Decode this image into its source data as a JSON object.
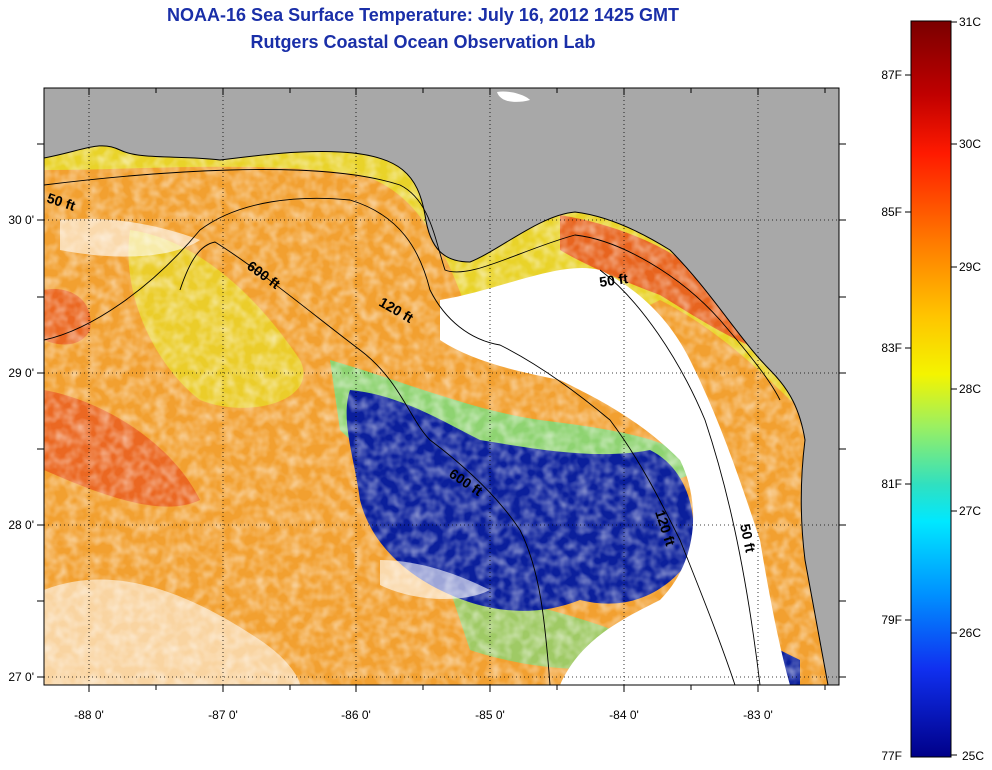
{
  "header": {
    "title": "NOAA-16 Sea Surface Temperature:  July 16, 2012 1425 GMT",
    "subtitle": "Rutgers Coastal Ocean Observation Lab"
  },
  "map": {
    "lon_ticks": [
      "-88 0'",
      "-87 0'",
      "-86 0'",
      "-85 0'",
      "-84 0'",
      "-83 0'"
    ],
    "lat_ticks": [
      "30 0'",
      "29 0'",
      "28 0'",
      "27 0'"
    ],
    "contours": [
      {
        "label": "50 ft"
      },
      {
        "label": "600 ft"
      },
      {
        "label": "120 ft"
      },
      {
        "label": "50 ft"
      },
      {
        "label": "600 ft"
      },
      {
        "label": "120 ft"
      },
      {
        "label": "50 ft"
      }
    ]
  },
  "colorbar": {
    "celsius": [
      "31C",
      "30C",
      "29C",
      "28C",
      "27C",
      "26C",
      "25C"
    ],
    "fahrenheit": [
      "87F",
      "85F",
      "83F",
      "81F",
      "79F",
      "77F"
    ]
  },
  "colors": {
    "title": "#1a2fa8",
    "land": "#a8a8a8",
    "cloud": "#ffffff",
    "warm": "#f2a030",
    "hot": "#e8501c",
    "mild": "#e8dc28",
    "cool": "#7cdc7c",
    "cold": "#0b1f9c"
  }
}
